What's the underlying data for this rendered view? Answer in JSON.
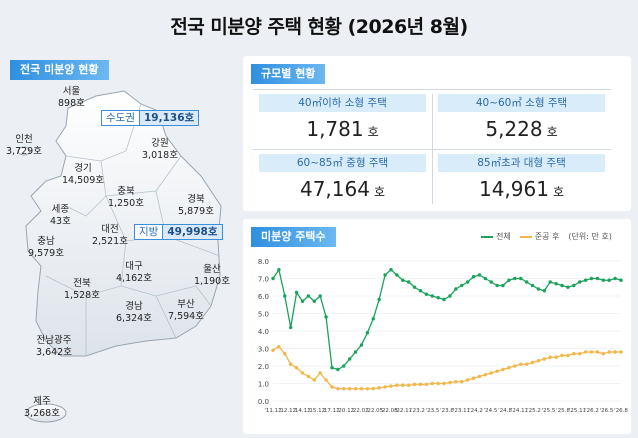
{
  "title": "전국 미분양 주택 현황  (2026년 8월)",
  "colors": {
    "green": "#1aa35a",
    "orange": "#f2b64a",
    "blue": "#2f8fe0"
  },
  "map_panel": {
    "heading": "전국 미분양 현황",
    "capital": {
      "name": "수도권",
      "value": "19,136호"
    },
    "local": {
      "name": "지방",
      "value": "49,998호"
    },
    "regions": [
      {
        "name": "서울",
        "value": "898호"
      },
      {
        "name": "인천",
        "value": "3,729호"
      },
      {
        "name": "경기",
        "value": "14,509호"
      },
      {
        "name": "강원",
        "value": "3,018호"
      },
      {
        "name": "충북",
        "value": "1,250호"
      },
      {
        "name": "세종",
        "value": "43호"
      },
      {
        "name": "대전",
        "value": "2,521호"
      },
      {
        "name": "경북",
        "value": "5,879호"
      },
      {
        "name": "충남",
        "value": "9,579호"
      },
      {
        "name": "대구",
        "value": "4,162호"
      },
      {
        "name": "울산",
        "value": "1,190호"
      },
      {
        "name": "전북",
        "value": "1,528호"
      },
      {
        "name": "경남",
        "value": "6,324호"
      },
      {
        "name": "부산",
        "value": "7,594호"
      },
      {
        "name": "전남광주",
        "value": "3,642호"
      },
      {
        "name": "제주",
        "value": "3,268호"
      }
    ]
  },
  "size_panel": {
    "heading": "규모별 현황",
    "unit": "호",
    "cells": [
      {
        "label": "40㎡이하 소형 주택",
        "value": "1,781"
      },
      {
        "label": "40~60㎡ 소형 주택",
        "value": "5,228"
      },
      {
        "label": "60~85㎡ 중형 주택",
        "value": "47,164"
      },
      {
        "label": "85㎡초과 대형 주택",
        "value": "14,961"
      }
    ]
  },
  "chart_panel": {
    "heading": "미분양 주택수",
    "legend_total": "전체",
    "legend_completed": "준공 후",
    "unit_note": "(단위: 만 호)"
  },
  "chart_data": {
    "type": "line",
    "title": "미분양 주택수",
    "ylabel": "",
    "unit": "만 호",
    "ylim": [
      0,
      8
    ],
    "yticks": [
      "0.0",
      "1.0",
      "2.0",
      "3.0",
      "4.0",
      "5.0",
      "6.0",
      "7.0",
      "8.0"
    ],
    "grid": true,
    "legend_position": "top-right",
    "xticks": [
      "'11.12",
      "'12.12",
      "'14.12",
      "'15.12",
      "'17.12",
      "'20.12",
      "'22.02",
      "'22.05",
      "'22.08",
      "'22.11",
      "'23.2",
      "'23.5",
      "'23.8",
      "'23.11",
      "'24.2",
      "'24.5",
      "'24.8",
      "'24.11",
      "'25.2",
      "'25.5",
      "'25.8",
      "'25.11",
      "'26.2",
      "'26.5",
      "'26.8"
    ],
    "series": [
      {
        "name": "전체",
        "color": "#1aa35a",
        "values": [
          7.0,
          7.5,
          6.0,
          4.2,
          6.2,
          5.7,
          6.0,
          5.7,
          6.0,
          4.8,
          1.9,
          1.8,
          2.0,
          2.4,
          2.8,
          3.2,
          3.9,
          4.7,
          5.8,
          7.2,
          7.5,
          7.2,
          6.9,
          6.8,
          6.5,
          6.3,
          6.1,
          6.0,
          5.9,
          5.8,
          6.0,
          6.4,
          6.6,
          6.8,
          7.1,
          7.2,
          7.0,
          6.8,
          6.6,
          6.6,
          6.9,
          7.0,
          7.0,
          6.8,
          6.6,
          6.4,
          6.3,
          6.8,
          6.7,
          6.6,
          6.5,
          6.6,
          6.8,
          6.9,
          7.0,
          7.0,
          6.9,
          6.9,
          7.0,
          6.9
        ]
      },
      {
        "name": "준공 후",
        "color": "#f2b64a",
        "values": [
          2.9,
          3.1,
          2.7,
          2.1,
          1.9,
          1.6,
          1.4,
          1.2,
          1.6,
          1.2,
          0.8,
          0.7,
          0.7,
          0.7,
          0.7,
          0.7,
          0.7,
          0.7,
          0.75,
          0.8,
          0.85,
          0.9,
          0.9,
          0.9,
          0.95,
          0.95,
          0.95,
          1.0,
          1.0,
          1.0,
          1.05,
          1.1,
          1.1,
          1.2,
          1.3,
          1.4,
          1.5,
          1.6,
          1.7,
          1.8,
          1.9,
          2.0,
          2.1,
          2.1,
          2.2,
          2.3,
          2.4,
          2.5,
          2.5,
          2.6,
          2.6,
          2.7,
          2.7,
          2.8,
          2.8,
          2.8,
          2.7,
          2.8,
          2.8,
          2.8
        ]
      }
    ]
  }
}
